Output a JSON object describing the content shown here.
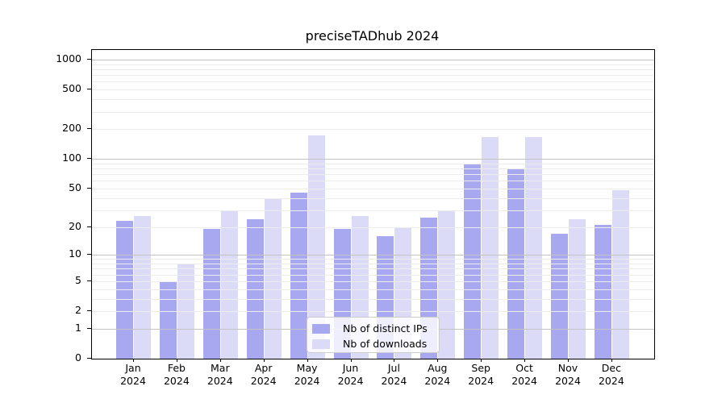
{
  "chart_data": {
    "type": "bar",
    "title": "preciseTADhub 2024",
    "categories": [
      "Jan 2024",
      "Feb 2024",
      "Mar 2024",
      "Apr 2024",
      "May 2024",
      "Jun 2024",
      "Jul 2024",
      "Aug 2024",
      "Sep 2024",
      "Oct 2024",
      "Nov 2024",
      "Dec 2024"
    ],
    "series": [
      {
        "name": "Nb of distinct IPs",
        "color": "#a8a8f0",
        "values": [
          23,
          5,
          19,
          24,
          45,
          19,
          16,
          25,
          88,
          78,
          17,
          21
        ]
      },
      {
        "name": "Nb of downloads",
        "color": "#dbdbf8",
        "values": [
          26,
          8,
          29,
          40,
          172,
          26,
          20,
          30,
          165,
          168,
          24,
          48
        ]
      }
    ],
    "y_ticks": [
      0,
      1,
      2,
      5,
      10,
      20,
      50,
      100,
      200,
      500,
      1000
    ],
    "y_scale": "log10(1+v)",
    "ylim": [
      0,
      1150
    ],
    "xlabel": "",
    "ylabel": "",
    "grid": "horizontal, minor light at 2-9 per decade, major at powers of 10",
    "legend_position": "inside lower-center",
    "colors": {
      "bar_dark": "#a8a8f0",
      "bar_light": "#dbdbf8",
      "grid_minor": "#ececec",
      "grid_major": "#c3c3c3",
      "axis": "#000000",
      "background": "#ffffff"
    }
  }
}
